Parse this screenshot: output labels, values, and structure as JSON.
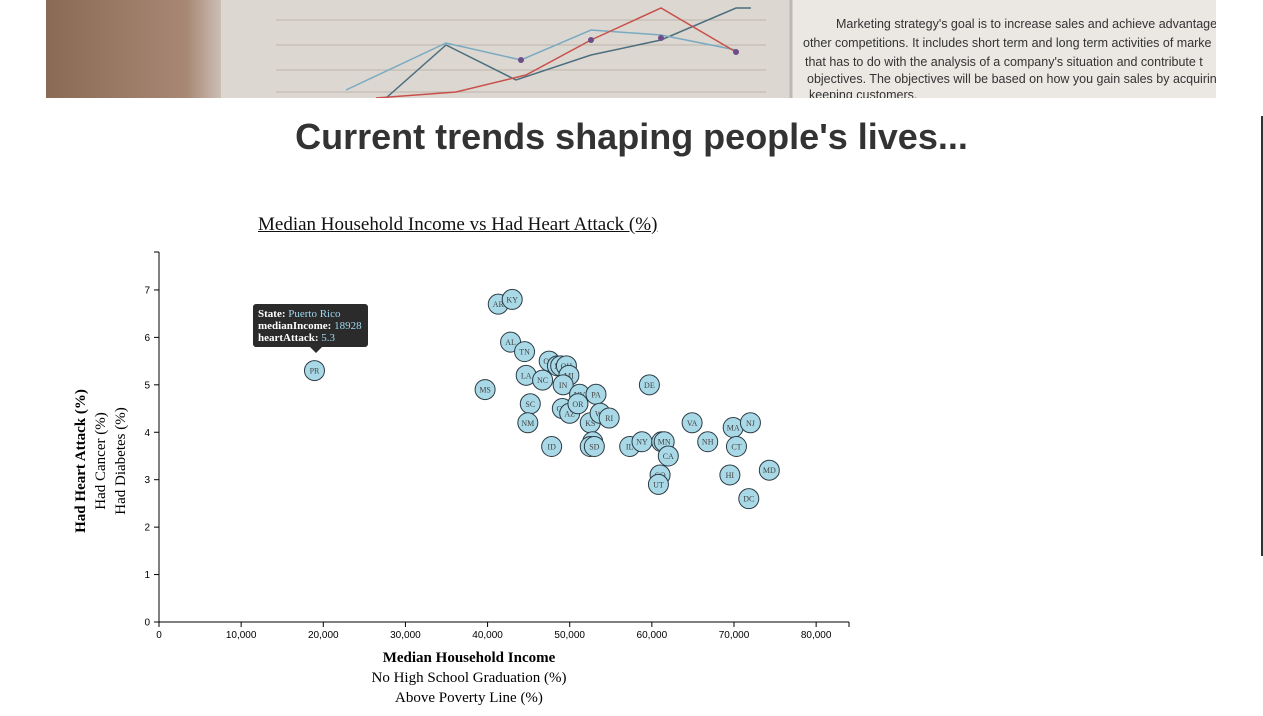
{
  "banner": {
    "text_lines": [
      "Marketing strategy's goal is to increase sales and achieve advantage o",
      "other competitions. It includes short term and long term activities of marke",
      "that has to do with the analysis of a company's situation and contribute t",
      "objectives. The objectives will be based on how you gain sales by acquirin",
      "keeping customers."
    ]
  },
  "page": {
    "title": "Current trends shaping people's lives..."
  },
  "chart_data": {
    "type": "scatter",
    "title": "Median Household Income vs Had Heart Attack (%)",
    "xlabel": "Median Household Income",
    "xlabel_alternates": [
      "No High School Graduation (%)",
      "Above Poverty Line (%)"
    ],
    "ylabel": "Had Heart Attack (%)",
    "ylabel_alternates": [
      "Had Cancer (%)",
      "Had Diabetes (%)"
    ],
    "xlim": [
      0,
      84000
    ],
    "ylim": [
      0,
      7.8
    ],
    "x_ticks": [
      "0",
      "10,000",
      "20,000",
      "30,000",
      "40,000",
      "50,000",
      "60,000",
      "70,000",
      "80,000"
    ],
    "y_ticks": [
      "0",
      "1",
      "2",
      "3",
      "4",
      "5",
      "6",
      "7"
    ],
    "point_color": "#a9d9e6",
    "points": [
      {
        "label": "PR",
        "x": 18928,
        "y": 5.3
      },
      {
        "label": "AR",
        "x": 41300,
        "y": 6.7
      },
      {
        "label": "KY",
        "x": 43000,
        "y": 6.8
      },
      {
        "label": "AL",
        "x": 42800,
        "y": 5.9
      },
      {
        "label": "TN",
        "x": 44500,
        "y": 5.7
      },
      {
        "label": "MS",
        "x": 39700,
        "y": 4.9
      },
      {
        "label": "LA",
        "x": 44700,
        "y": 5.2
      },
      {
        "label": "NC",
        "x": 46700,
        "y": 5.1
      },
      {
        "label": "OK",
        "x": 47500,
        "y": 5.5
      },
      {
        "label": "SC",
        "x": 45200,
        "y": 4.6
      },
      {
        "label": "NM",
        "x": 44900,
        "y": 4.2
      },
      {
        "label": "ID",
        "x": 47800,
        "y": 3.7
      },
      {
        "label": "WV",
        "x": 48500,
        "y": 5.4
      },
      {
        "label": "MO",
        "x": 48900,
        "y": 5.4
      },
      {
        "label": "OH",
        "x": 49600,
        "y": 5.4
      },
      {
        "label": "MI",
        "x": 49900,
        "y": 5.2
      },
      {
        "label": "IN",
        "x": 49200,
        "y": 5.0
      },
      {
        "label": "NV",
        "x": 51200,
        "y": 4.8
      },
      {
        "label": "PA",
        "x": 53200,
        "y": 4.8
      },
      {
        "label": "GA",
        "x": 49100,
        "y": 4.5
      },
      {
        "label": "AZ",
        "x": 50000,
        "y": 4.4
      },
      {
        "label": "OR",
        "x": 51000,
        "y": 4.6
      },
      {
        "label": "KS",
        "x": 52500,
        "y": 4.2
      },
      {
        "label": "WI",
        "x": 53700,
        "y": 4.4
      },
      {
        "label": "RI",
        "x": 54800,
        "y": 4.3
      },
      {
        "label": "TX",
        "x": 52800,
        "y": 3.8
      },
      {
        "label": "MT",
        "x": 52500,
        "y": 3.7
      },
      {
        "label": "SD",
        "x": 53000,
        "y": 3.7
      },
      {
        "label": "IL",
        "x": 57300,
        "y": 3.7
      },
      {
        "label": "NY",
        "x": 58800,
        "y": 3.8
      },
      {
        "label": "DE",
        "x": 59700,
        "y": 5.0
      },
      {
        "label": "WA",
        "x": 61200,
        "y": 3.8
      },
      {
        "label": "MN",
        "x": 61500,
        "y": 3.8
      },
      {
        "label": "CA",
        "x": 62000,
        "y": 3.5
      },
      {
        "label": "CO",
        "x": 61000,
        "y": 3.1
      },
      {
        "label": "UT",
        "x": 60800,
        "y": 2.9
      },
      {
        "label": "VA",
        "x": 64900,
        "y": 4.2
      },
      {
        "label": "NH",
        "x": 66800,
        "y": 3.8
      },
      {
        "label": "MA",
        "x": 69900,
        "y": 4.1
      },
      {
        "label": "NJ",
        "x": 72000,
        "y": 4.2
      },
      {
        "label": "CT",
        "x": 70300,
        "y": 3.7
      },
      {
        "label": "HI",
        "x": 69500,
        "y": 3.1
      },
      {
        "label": "DC",
        "x": 71800,
        "y": 2.6
      },
      {
        "label": "MD",
        "x": 74300,
        "y": 3.2
      }
    ]
  },
  "tooltip": {
    "state_label": "State:",
    "state_value": "Puerto Rico",
    "income_label": "medianIncome:",
    "income_value": "18928",
    "attack_label": "heartAttack:",
    "attack_value": "5.3"
  }
}
